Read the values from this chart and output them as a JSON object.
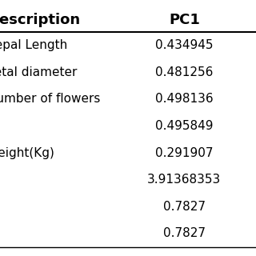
{
  "columns": [
    "Description",
    "PC1"
  ],
  "rows": [
    [
      "Sepal Length",
      "0.434945"
    ],
    [
      "Petal diameter",
      "0.481256"
    ],
    [
      "Number of flowers",
      "0.498136"
    ],
    [
      "",
      "0.495849"
    ],
    [
      "Weight(Kg)",
      "0.291907"
    ],
    [
      "",
      "3.91368353"
    ],
    [
      "",
      "0.7827"
    ],
    [
      "",
      "0.7827"
    ]
  ],
  "header_fontsize": 13,
  "row_fontsize": 11,
  "background_color": "#ffffff",
  "text_color": "#000000",
  "line_color": "#000000"
}
